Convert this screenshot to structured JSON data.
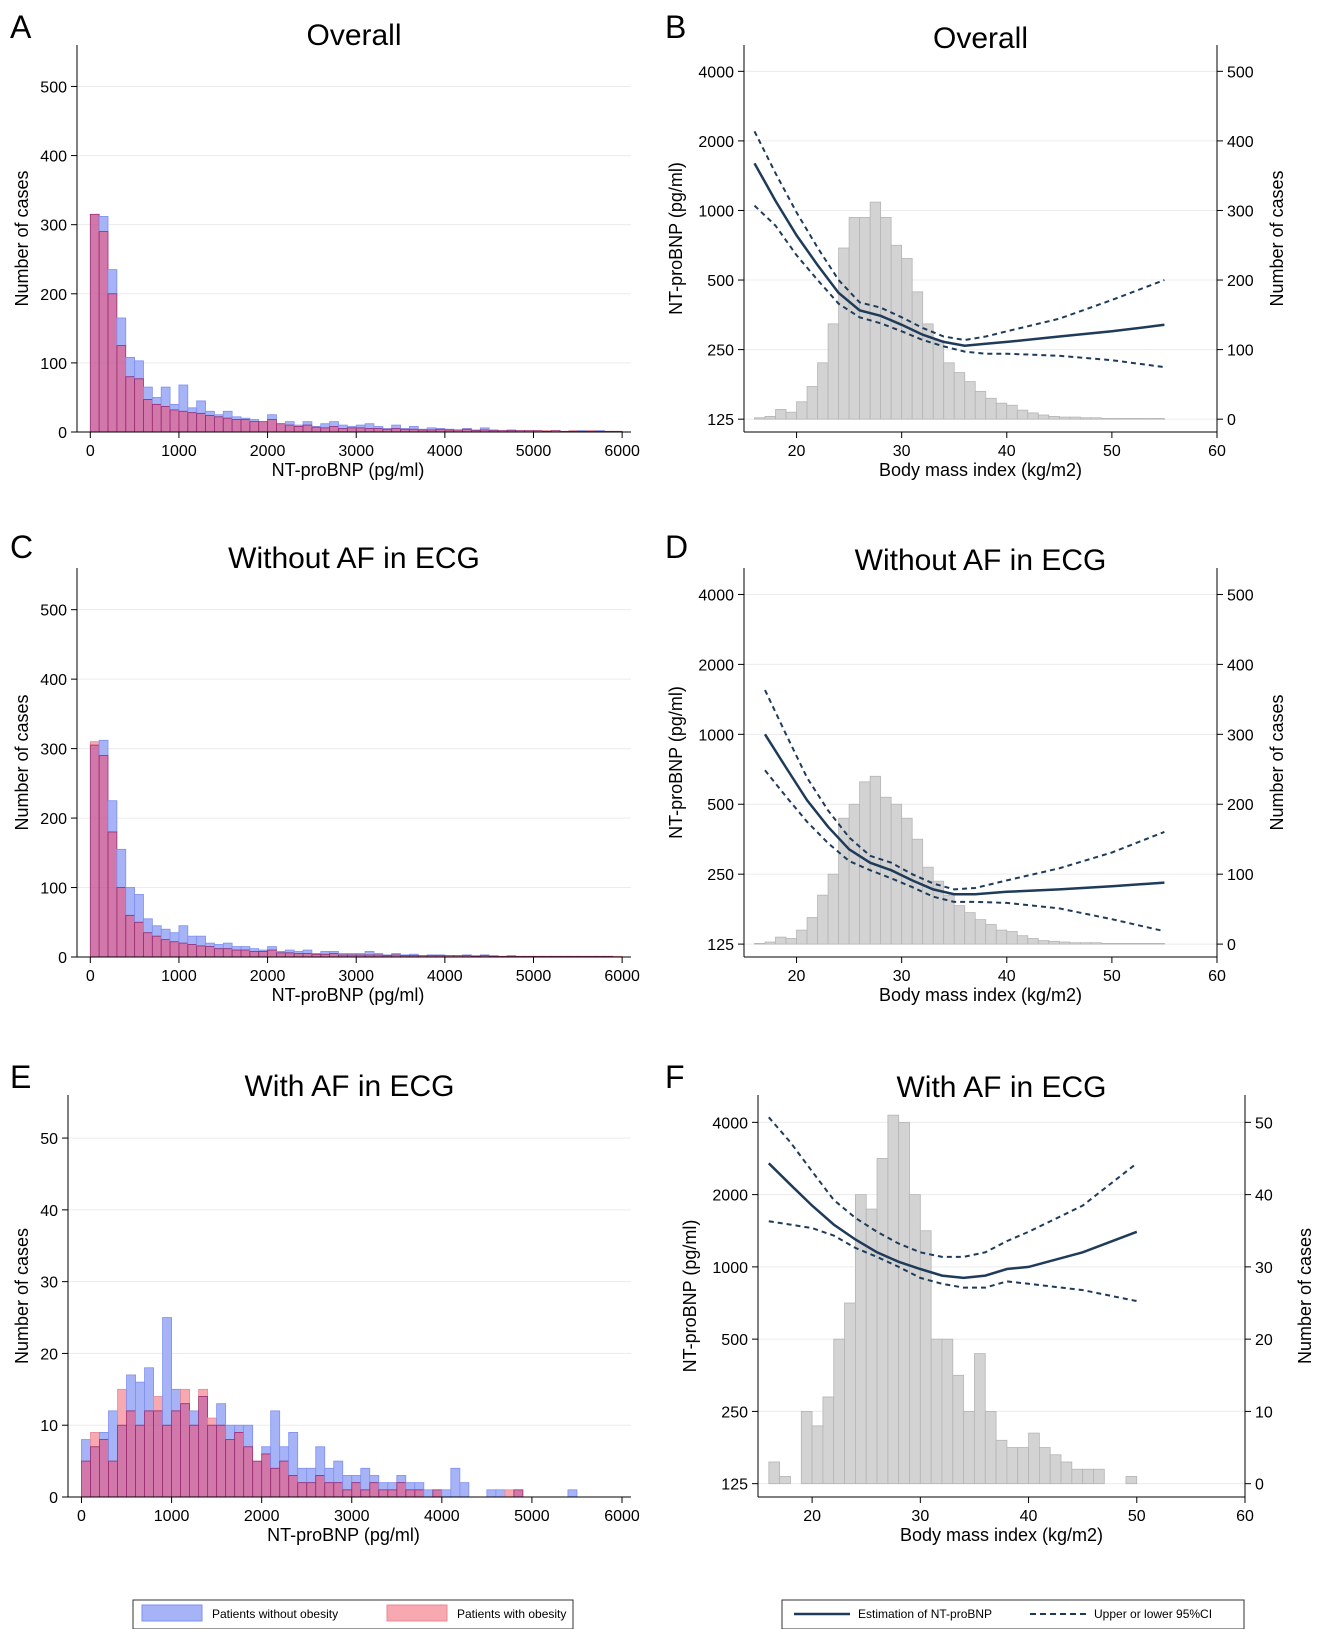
{
  "colors": {
    "hist_nonobese": "#a6b4f7",
    "hist_nonobese_edge": "#7f8ff0",
    "hist_obese": "#f7a8b0",
    "hist_obese_edge": "#e88a96",
    "overlap": "#c24a8e",
    "overlap_edge": "#9a2f72",
    "gray_bar": "#d3d3d3",
    "gray_edge": "#b5b5b5",
    "curve": "#1f3b5a",
    "grid": "#ececec"
  },
  "legends": {
    "left": {
      "nonobese": "Patients without obesity",
      "obese": "Patients with obesity"
    },
    "right": {
      "estimate": "Estimation of NT-proBNP",
      "ci": "Upper or lower 95%CI"
    }
  },
  "chart_data": [
    {
      "panel": "A",
      "type": "bar",
      "title": "Overall",
      "xlabel": "NT-proBNP (pg/ml)",
      "ylabel": "Number of cases",
      "xlim": [
        -150,
        6100
      ],
      "ylim": [
        0,
        560
      ],
      "xticks": [
        0,
        1000,
        2000,
        3000,
        4000,
        5000,
        6000
      ],
      "yticks": [
        0,
        100,
        200,
        300,
        400,
        500
      ],
      "bin_start": 0,
      "bin_width": 100,
      "grid": true,
      "series": [
        {
          "name": "Patients without obesity",
          "values": [
            315,
            312,
            235,
            165,
            108,
            103,
            65,
            50,
            65,
            40,
            68,
            35,
            45,
            30,
            25,
            30,
            22,
            20,
            18,
            15,
            25,
            12,
            15,
            10,
            15,
            8,
            12,
            15,
            10,
            8,
            10,
            12,
            8,
            5,
            10,
            5,
            8,
            4,
            6,
            5,
            4,
            3,
            5,
            3,
            6,
            3,
            2,
            3,
            2,
            2,
            2,
            1,
            2,
            1,
            1,
            2,
            1,
            2,
            1,
            1
          ]
        },
        {
          "name": "Patients with obesity",
          "values": [
            315,
            290,
            200,
            125,
            80,
            77,
            47,
            40,
            37,
            32,
            30,
            28,
            27,
            24,
            22,
            20,
            18,
            18,
            15,
            15,
            18,
            12,
            10,
            8,
            10,
            7,
            6,
            8,
            5,
            6,
            6,
            5,
            5,
            4,
            5,
            4,
            4,
            3,
            3,
            4,
            3,
            3,
            4,
            2,
            3,
            2,
            2,
            2,
            2,
            2,
            2,
            2,
            2,
            1,
            2,
            1,
            2,
            1,
            1,
            1
          ]
        }
      ]
    },
    {
      "panel": "B",
      "type": "line",
      "title": "Overall",
      "xlabel": "Body mass index (kg/m2)",
      "ylabel": "NT-proBNP (pg/ml)",
      "y2label": "Number of cases",
      "xlim": [
        15,
        60
      ],
      "ylim": [
        110,
        5200
      ],
      "y2lim": [
        0,
        565
      ],
      "yscale": "log",
      "xticks": [
        20,
        30,
        40,
        50,
        60
      ],
      "yticks": [
        125,
        250,
        500,
        1000,
        2000,
        4000
      ],
      "y2ticks": [
        0,
        100,
        200,
        300,
        400,
        500
      ],
      "hist": {
        "name": "Number of cases",
        "bin_start": 16,
        "bin_width": 1,
        "values": [
          2,
          4,
          14,
          10,
          25,
          47,
          81,
          137,
          246,
          290,
          290,
          312,
          290,
          250,
          231,
          183,
          137,
          113,
          81,
          67,
          54,
          40,
          30,
          23,
          20,
          13,
          9,
          6,
          4,
          3,
          3,
          2,
          2,
          1,
          1,
          1,
          1,
          1,
          1
        ]
      },
      "series": [
        {
          "name": "Estimation of NT-proBNP",
          "style": "solid",
          "x": [
            16,
            18,
            20,
            22,
            24,
            26,
            28,
            30,
            32,
            34,
            36,
            38,
            40,
            45,
            50,
            55
          ],
          "y": [
            1600,
            1100,
            780,
            580,
            440,
            370,
            350,
            320,
            290,
            270,
            260,
            265,
            270,
            285,
            300,
            320
          ]
        },
        {
          "name": "Upper or lower 95%CI",
          "style": "dash",
          "x": [
            16,
            18,
            20,
            22,
            24,
            26,
            28,
            30,
            32,
            34,
            36,
            38,
            40,
            45,
            50,
            55
          ],
          "y": [
            2200,
            1450,
            980,
            690,
            500,
            400,
            380,
            345,
            310,
            285,
            275,
            285,
            300,
            340,
            410,
            500
          ]
        },
        {
          "name": "Upper or lower 95%CI",
          "style": "dash",
          "x": [
            16,
            18,
            20,
            22,
            24,
            26,
            28,
            30,
            32,
            34,
            36,
            38,
            40,
            45,
            50,
            55
          ],
          "y": [
            1050,
            860,
            640,
            500,
            395,
            345,
            325,
            300,
            275,
            258,
            245,
            240,
            240,
            235,
            225,
            210
          ]
        }
      ]
    },
    {
      "panel": "C",
      "type": "bar",
      "title": "Without AF in ECG",
      "xlabel": "NT-proBNP (pg/ml)",
      "ylabel": "Number of cases",
      "xlim": [
        -150,
        6100
      ],
      "ylim": [
        0,
        560
      ],
      "xticks": [
        0,
        1000,
        2000,
        3000,
        4000,
        5000,
        6000
      ],
      "yticks": [
        0,
        100,
        200,
        300,
        400,
        500
      ],
      "bin_start": 0,
      "bin_width": 100,
      "grid": true,
      "series": [
        {
          "name": "Patients without obesity",
          "values": [
            305,
            312,
            225,
            155,
            100,
            90,
            55,
            45,
            40,
            35,
            45,
            30,
            30,
            20,
            18,
            20,
            15,
            15,
            12,
            10,
            15,
            8,
            10,
            8,
            10,
            5,
            8,
            8,
            5,
            5,
            5,
            8,
            5,
            3,
            5,
            3,
            4,
            2,
            3,
            3,
            2,
            2,
            3,
            2,
            3,
            2,
            1,
            2,
            1,
            1,
            1,
            1,
            1,
            1,
            1,
            1,
            1,
            1,
            1,
            0
          ]
        },
        {
          "name": "Patients with obesity",
          "values": [
            310,
            290,
            180,
            100,
            60,
            50,
            35,
            30,
            25,
            22,
            20,
            18,
            16,
            15,
            12,
            12,
            10,
            10,
            8,
            8,
            10,
            6,
            6,
            5,
            5,
            4,
            4,
            5,
            3,
            3,
            3,
            3,
            3,
            2,
            3,
            2,
            2,
            2,
            2,
            2,
            2,
            2,
            2,
            1,
            2,
            1,
            1,
            1,
            1,
            1,
            1,
            1,
            1,
            1,
            1,
            1,
            1,
            1,
            1,
            1
          ]
        }
      ]
    },
    {
      "panel": "D",
      "type": "line",
      "title": "Without AF in ECG",
      "xlabel": "Body mass index (kg/m2)",
      "ylabel": "NT-proBNP (pg/ml)",
      "y2label": "Number of cases",
      "xlim": [
        15,
        60
      ],
      "ylim": [
        110,
        5200
      ],
      "y2lim": [
        0,
        565
      ],
      "yscale": "log",
      "xticks": [
        20,
        30,
        40,
        50,
        60
      ],
      "yticks": [
        125,
        250,
        500,
        1000,
        2000,
        4000
      ],
      "y2ticks": [
        0,
        100,
        200,
        300,
        400,
        500
      ],
      "hist": {
        "name": "Number of cases",
        "bin_start": 16,
        "bin_width": 1,
        "values": [
          1,
          3,
          10,
          8,
          20,
          38,
          70,
          100,
          180,
          200,
          232,
          240,
          210,
          200,
          180,
          150,
          110,
          90,
          70,
          55,
          45,
          35,
          28,
          20,
          18,
          12,
          8,
          5,
          4,
          3,
          2,
          2,
          2,
          1,
          1,
          1,
          1,
          1,
          1
        ]
      },
      "series": [
        {
          "name": "Estimation of NT-proBNP",
          "style": "solid",
          "x": [
            17,
            19,
            21,
            23,
            25,
            27,
            29,
            31,
            33,
            35,
            37,
            40,
            45,
            50,
            55
          ],
          "y": [
            1000,
            720,
            520,
            400,
            320,
            280,
            260,
            235,
            215,
            205,
            205,
            210,
            215,
            222,
            230
          ]
        },
        {
          "name": "Upper or lower 95%CI",
          "style": "dash",
          "x": [
            17,
            19,
            21,
            23,
            25,
            27,
            29,
            31,
            33,
            35,
            37,
            40,
            45,
            50,
            55
          ],
          "y": [
            1550,
            1000,
            650,
            470,
            360,
            300,
            280,
            250,
            228,
            215,
            218,
            235,
            265,
            310,
            380
          ]
        },
        {
          "name": "Upper or lower 95%CI",
          "style": "dash",
          "x": [
            17,
            19,
            21,
            23,
            25,
            27,
            29,
            31,
            33,
            35,
            37,
            40,
            45,
            50,
            55
          ],
          "y": [
            700,
            540,
            420,
            340,
            285,
            260,
            240,
            220,
            200,
            190,
            190,
            188,
            178,
            160,
            142
          ]
        }
      ]
    },
    {
      "panel": "E",
      "type": "bar",
      "title": "With AF in ECG",
      "xlabel": "NT-proBNP (pg/ml)",
      "ylabel": "Number of cases",
      "xlim": [
        -150,
        6100
      ],
      "ylim": [
        0,
        56
      ],
      "xticks": [
        0,
        1000,
        2000,
        3000,
        4000,
        5000,
        6000
      ],
      "yticks": [
        0,
        10,
        20,
        30,
        40,
        50
      ],
      "bin_start": 0,
      "bin_width": 100,
      "grid": true,
      "series": [
        {
          "name": "Patients without obesity",
          "values": [
            8,
            7,
            9,
            12,
            10,
            17,
            16,
            18,
            12,
            25,
            15,
            13,
            12,
            14,
            10,
            13,
            10,
            10,
            10,
            5,
            7,
            12,
            7,
            9,
            4,
            4,
            7,
            4,
            5,
            3,
            3,
            4,
            3,
            2,
            2,
            3,
            2,
            2,
            1,
            1,
            1,
            4,
            2,
            0,
            0,
            1,
            1,
            0,
            1,
            0,
            0,
            0,
            0,
            0,
            1,
            0,
            0,
            0,
            0,
            0
          ]
        },
        {
          "name": "Patients with obesity",
          "values": [
            5,
            9,
            8,
            5,
            15,
            12,
            10,
            12,
            14,
            10,
            12,
            15,
            10,
            15,
            11,
            10,
            8,
            9,
            7,
            5,
            6,
            4,
            5,
            3,
            2,
            2,
            3,
            2,
            2,
            1,
            2,
            1,
            2,
            1,
            1,
            2,
            1,
            1,
            0,
            1,
            0,
            0,
            0,
            0,
            0,
            0,
            0,
            1,
            1,
            0,
            0,
            0,
            0,
            0,
            0,
            0,
            0,
            0,
            0,
            0
          ]
        }
      ]
    },
    {
      "panel": "F",
      "type": "line",
      "title": "With AF in ECG",
      "xlabel": "Body mass index (kg/m2)",
      "ylabel": "NT-proBNP (pg/ml)",
      "y2label": "Number of cases",
      "xlim": [
        15,
        60
      ],
      "ylim": [
        110,
        5200
      ],
      "y2lim": [
        0,
        56
      ],
      "yscale": "log",
      "xticks": [
        20,
        30,
        40,
        50,
        60
      ],
      "yticks": [
        125,
        250,
        500,
        1000,
        2000,
        4000
      ],
      "y2ticks": [
        0,
        10,
        20,
        30,
        40,
        50
      ],
      "hist": {
        "name": "Number of cases",
        "bin_start": 16,
        "bin_width": 1,
        "values": [
          3,
          1,
          0,
          10,
          8,
          12,
          20,
          25,
          40,
          38,
          45,
          51,
          50,
          40,
          35,
          20,
          20,
          15,
          10,
          18,
          10,
          6,
          5,
          5,
          7,
          5,
          4,
          3,
          2,
          2,
          2,
          0,
          0,
          1
        ]
      },
      "series": [
        {
          "name": "Estimation of NT-proBNP",
          "style": "solid",
          "x": [
            16,
            18,
            20,
            22,
            24,
            26,
            28,
            30,
            32,
            34,
            36,
            38,
            40,
            45,
            50
          ],
          "y": [
            2700,
            2200,
            1800,
            1500,
            1300,
            1150,
            1050,
            980,
            920,
            900,
            920,
            980,
            1000,
            1150,
            1400
          ]
        },
        {
          "name": "Upper or lower 95%CI",
          "style": "dash",
          "x": [
            16,
            18,
            20,
            22,
            24,
            26,
            28,
            30,
            32,
            34,
            36,
            38,
            40,
            45,
            50
          ],
          "y": [
            4200,
            3300,
            2500,
            1900,
            1600,
            1400,
            1250,
            1150,
            1100,
            1100,
            1150,
            1280,
            1400,
            1800,
            2700
          ]
        },
        {
          "name": "Upper or lower 95%CI",
          "style": "dash",
          "x": [
            16,
            18,
            20,
            22,
            24,
            26,
            28,
            30,
            32,
            34,
            36,
            38,
            40,
            45,
            50
          ],
          "y": [
            1550,
            1500,
            1450,
            1350,
            1200,
            1100,
            1000,
            900,
            850,
            820,
            820,
            870,
            850,
            800,
            720
          ]
        }
      ]
    }
  ]
}
